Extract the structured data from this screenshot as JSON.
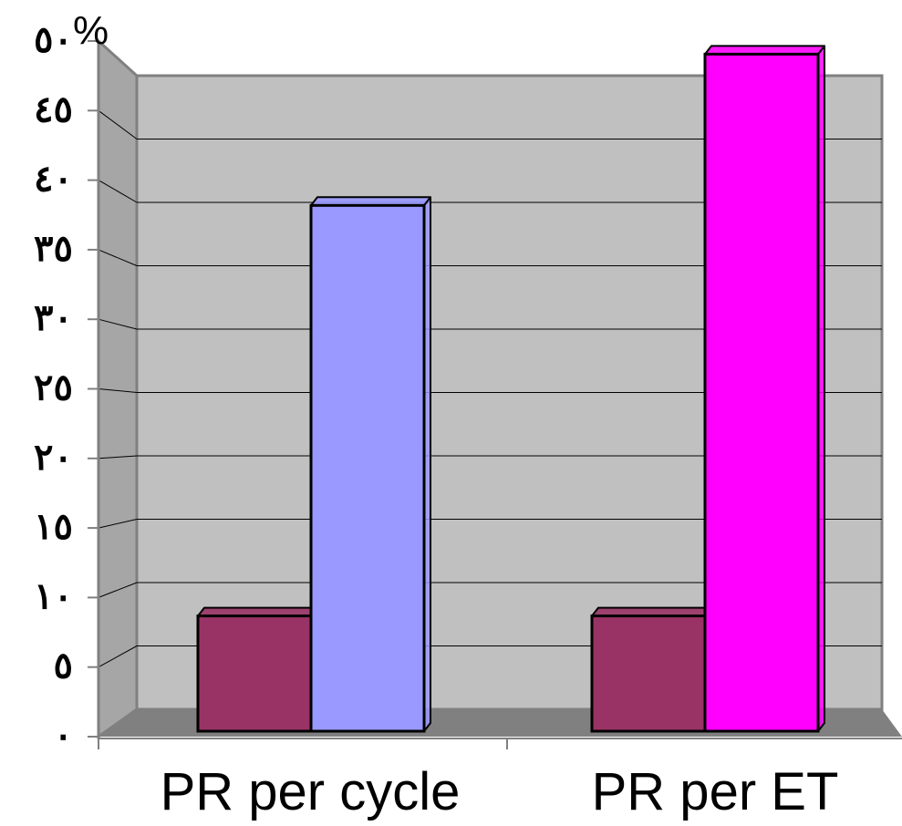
{
  "chart_data": {
    "type": "bar",
    "three_d": true,
    "categories": [
      "PR per cycle",
      "PR per ET"
    ],
    "series": [
      {
        "values": [
          8,
          8
        ],
        "color": "#993366"
      },
      {
        "values": [
          36.5,
          47
        ],
        "colors": [
          "#9999ff",
          "#ff00ff"
        ]
      }
    ],
    "ylim": [
      0,
      50
    ],
    "y_tick_labels": [
      "٠",
      "٥",
      "١٠",
      "١٥",
      "٢٠",
      "٢٥",
      "٣٠",
      "٣٥",
      "٤٠",
      "٤٥",
      "٥٠"
    ],
    "y_unit": "%",
    "grid": true,
    "wall_color": "#c0c0c0",
    "floor_color": "#808080"
  }
}
